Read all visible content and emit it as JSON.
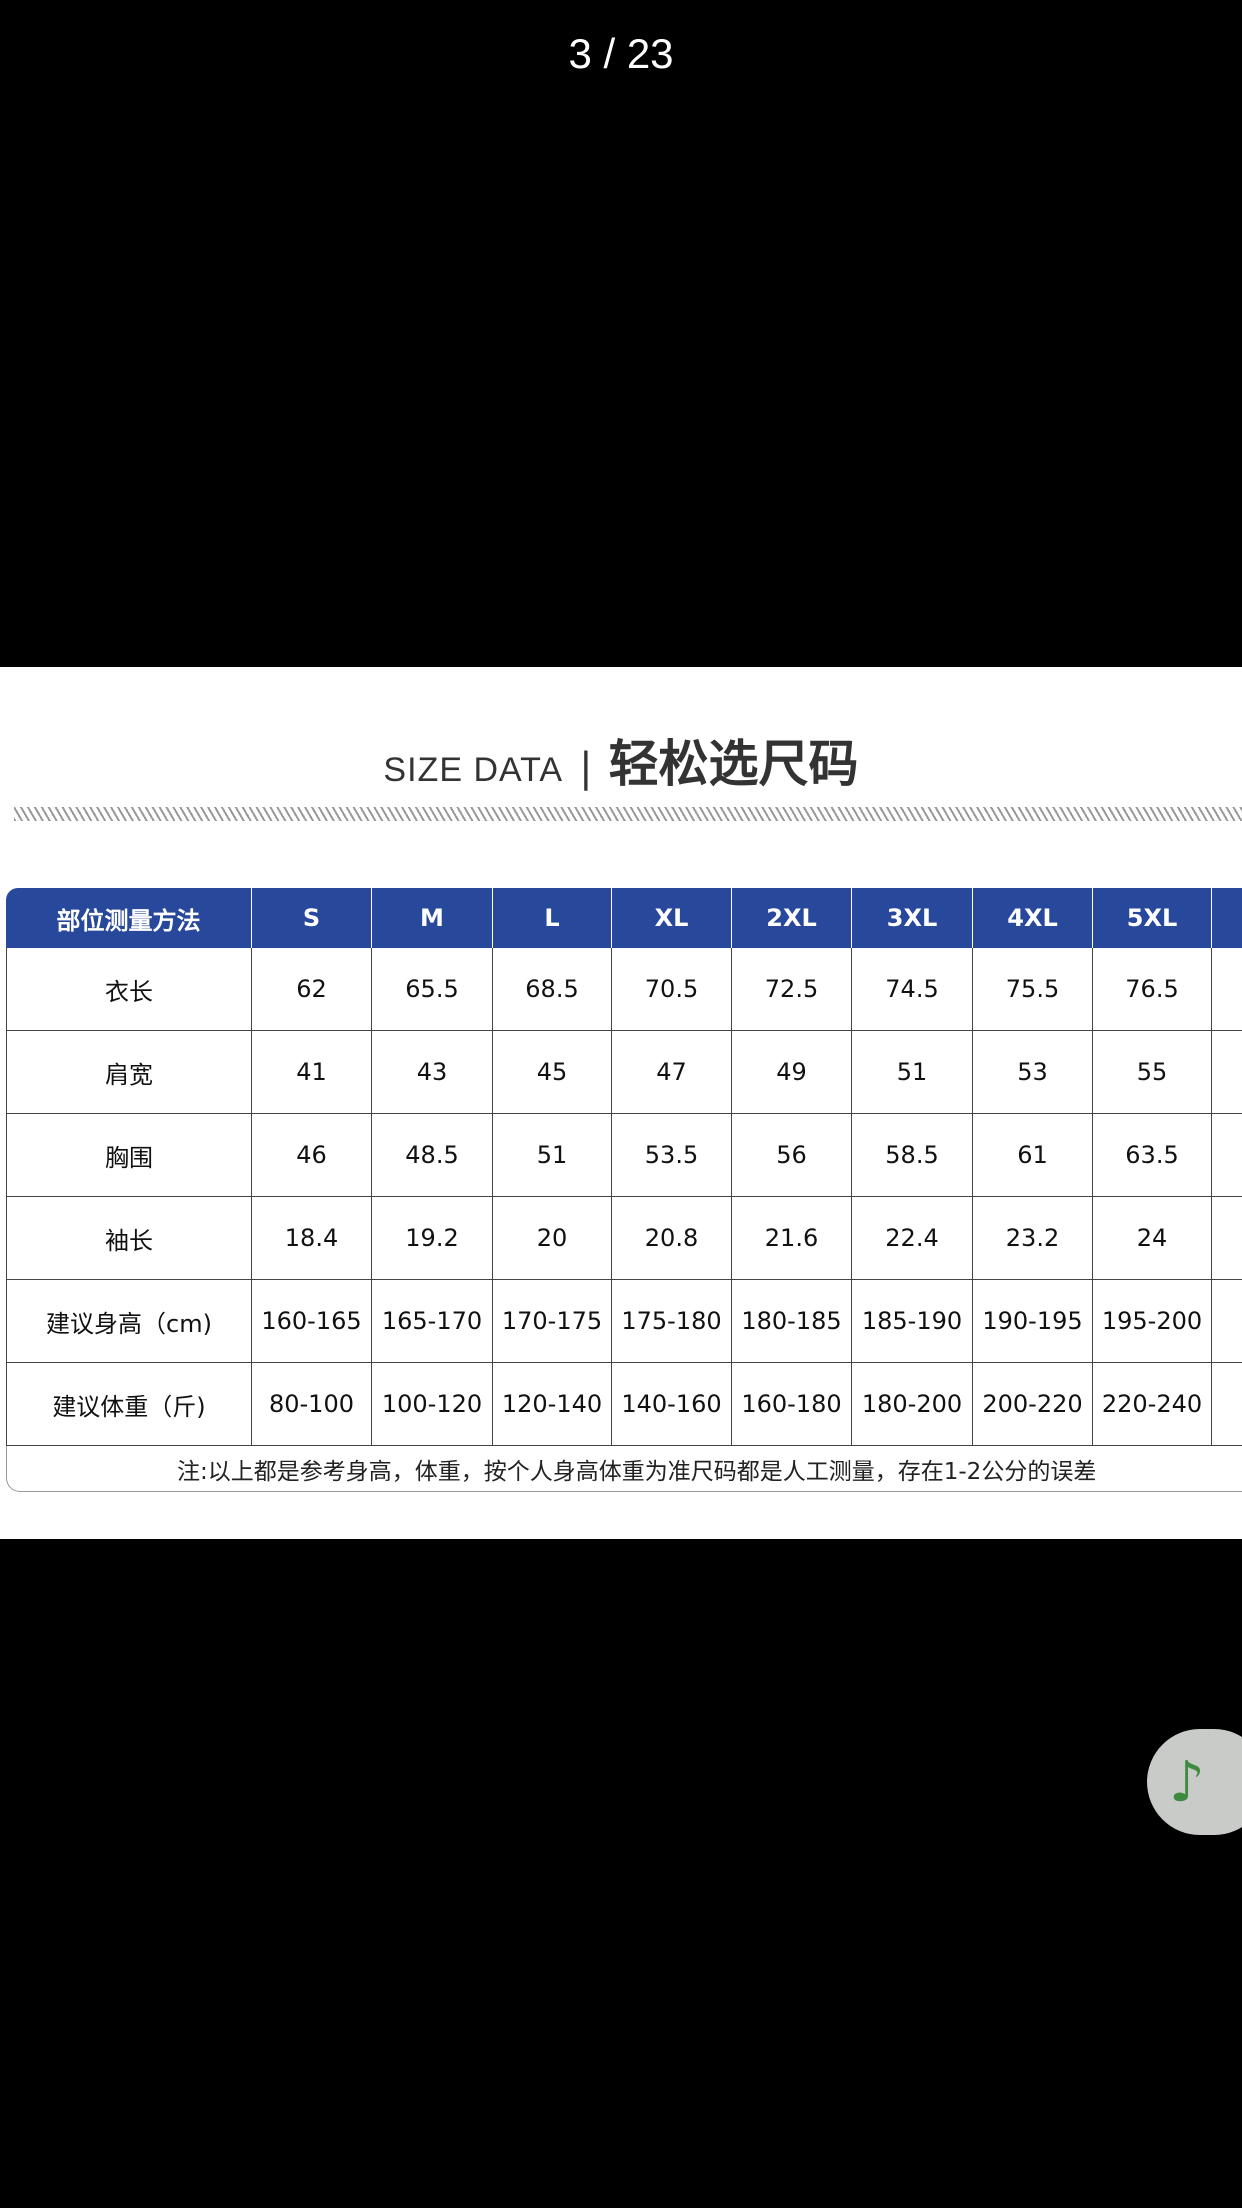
{
  "header": {
    "page_indicator": "3 / 23"
  },
  "title": {
    "en": "SIZE DATA",
    "separator": "|",
    "zh": "轻松选尺码"
  },
  "table": {
    "header": [
      "部位测量方法",
      "S",
      "M",
      "L",
      "XL",
      "2XL",
      "3XL",
      "4XL",
      "5XL"
    ],
    "rows": [
      [
        "衣长",
        "62",
        "65.5",
        "68.5",
        "70.5",
        "72.5",
        "74.5",
        "75.5",
        "76.5"
      ],
      [
        "肩宽",
        "41",
        "43",
        "45",
        "47",
        "49",
        "51",
        "53",
        "55"
      ],
      [
        "胸围",
        "46",
        "48.5",
        "51",
        "53.5",
        "56",
        "58.5",
        "61",
        "63.5"
      ],
      [
        "袖长",
        "18.4",
        "19.2",
        "20",
        "20.8",
        "21.6",
        "22.4",
        "23.2",
        "24"
      ],
      [
        "建议身高（cm)",
        "160-165",
        "165-170",
        "170-175",
        "175-180",
        "180-185",
        "185-190",
        "190-195",
        "195-200"
      ],
      [
        "建议体重（斤)",
        "80-100",
        "100-120",
        "120-140",
        "140-160",
        "160-180",
        "180-200",
        "200-220",
        "220-240"
      ]
    ],
    "note": "注:以上都是参考身高，体重，按个人身高体重为准尺码都是人工测量，存在1-2公分的误差"
  },
  "music_button": {
    "icon": "♪"
  }
}
